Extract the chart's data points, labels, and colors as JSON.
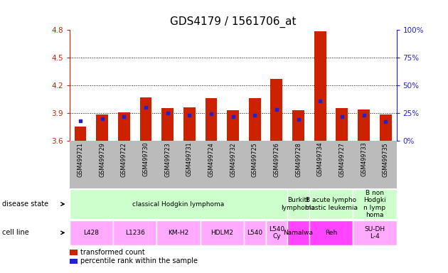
{
  "title": "GDS4179 / 1561706_at",
  "samples": [
    "GSM499721",
    "GSM499729",
    "GSM499722",
    "GSM499730",
    "GSM499723",
    "GSM499731",
    "GSM499724",
    "GSM499732",
    "GSM499725",
    "GSM499726",
    "GSM499728",
    "GSM499734",
    "GSM499727",
    "GSM499733",
    "GSM499735"
  ],
  "transformed_count": [
    3.75,
    3.88,
    3.91,
    4.07,
    3.95,
    3.96,
    4.06,
    3.93,
    4.06,
    4.27,
    3.93,
    4.79,
    3.95,
    3.94,
    3.88
  ],
  "percentile_rank": [
    18,
    20,
    22,
    30,
    25,
    23,
    24,
    22,
    23,
    28,
    19,
    36,
    22,
    23,
    17
  ],
  "ylim_left": [
    3.6,
    4.8
  ],
  "ylim_right": [
    0,
    100
  ],
  "yticks_left": [
    3.6,
    3.9,
    4.2,
    4.5,
    4.8
  ],
  "yticks_right": [
    0,
    25,
    50,
    75,
    100
  ],
  "bar_color": "#cc2200",
  "dot_color": "#2222cc",
  "bar_width": 0.55,
  "disease_state_groups": [
    {
      "label": "classical Hodgkin lymphoma",
      "start": 0,
      "end": 9,
      "color": "#ccffcc"
    },
    {
      "label": "Burkitt\nlymphoma",
      "start": 10,
      "end": 10,
      "color": "#ccffcc"
    },
    {
      "label": "B acute lympho\nblastic leukemia",
      "start": 11,
      "end": 12,
      "color": "#ccffcc"
    },
    {
      "label": "B non\nHodgki\nn lymp\nhoma",
      "start": 13,
      "end": 14,
      "color": "#ccffcc"
    }
  ],
  "cell_line_groups": [
    {
      "label": "L428",
      "start": 0,
      "end": 1,
      "color": "#ffaaff"
    },
    {
      "label": "L1236",
      "start": 2,
      "end": 3,
      "color": "#ffaaff"
    },
    {
      "label": "KM-H2",
      "start": 4,
      "end": 5,
      "color": "#ffaaff"
    },
    {
      "label": "HDLM2",
      "start": 6,
      "end": 7,
      "color": "#ffaaff"
    },
    {
      "label": "L540",
      "start": 8,
      "end": 8,
      "color": "#ffaaff"
    },
    {
      "label": "L540\nCy",
      "start": 9,
      "end": 9,
      "color": "#ffaaff"
    },
    {
      "label": "Namalwa",
      "start": 10,
      "end": 10,
      "color": "#ff44ff"
    },
    {
      "label": "Reh",
      "start": 11,
      "end": 12,
      "color": "#ff44ff"
    },
    {
      "label": "SU-DH\nL-4",
      "start": 13,
      "end": 14,
      "color": "#ffaaff"
    }
  ],
  "xtick_bg_color": "#bbbbbb",
  "left_axis_color": "#cc2200",
  "right_axis_color": "#2222cc",
  "bg_color": "#ffffff",
  "title_fontsize": 11,
  "legend_items": [
    {
      "color": "#cc2200",
      "label": "transformed count"
    },
    {
      "color": "#2222cc",
      "label": "percentile rank within the sample"
    }
  ]
}
